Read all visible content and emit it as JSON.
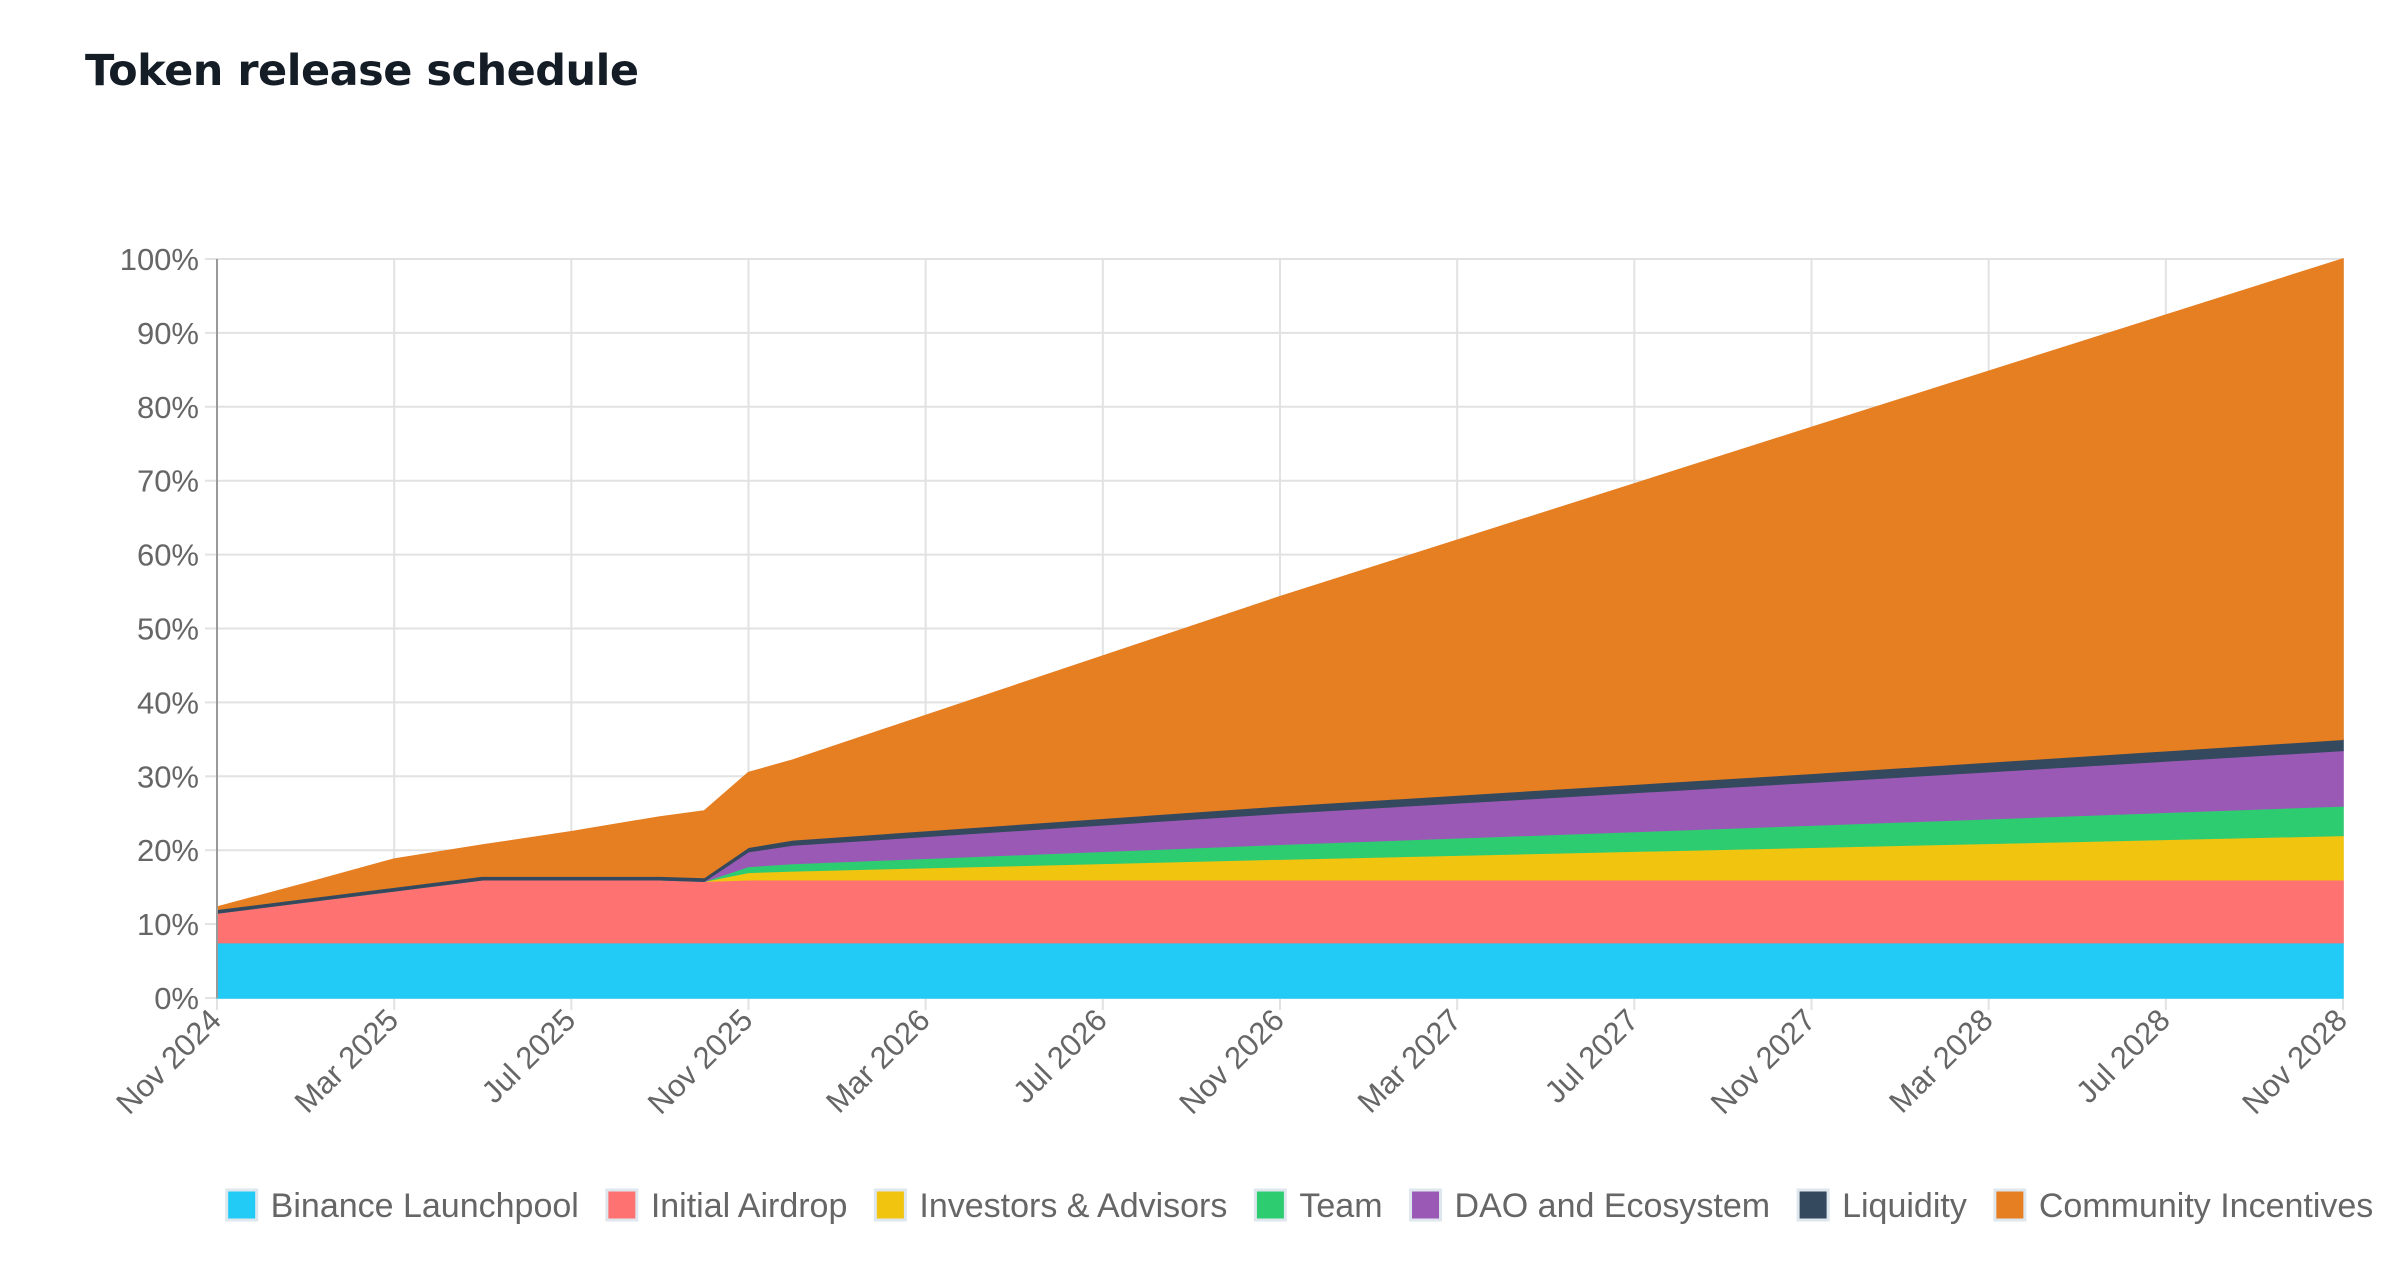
{
  "chart_data": {
    "type": "area",
    "stacked": true,
    "title": "Token release schedule",
    "xlabel": "",
    "ylabel": "",
    "ylim": [
      0,
      100
    ],
    "y_unit": "%",
    "grid": true,
    "legend_position": "bottom",
    "x": [
      "2024-11",
      "2025-01",
      "2025-03",
      "2025-05",
      "2025-07",
      "2025-09",
      "2025-10",
      "2025-11",
      "2025-12",
      "2026-11",
      "2027-11",
      "2028-11"
    ],
    "x_ticks": [
      "Nov 2024",
      "Mar 2025",
      "Jul 2025",
      "Nov 2025",
      "Mar 2026",
      "Jul 2026",
      "Nov 2026",
      "Mar 2027",
      "Jul 2027",
      "Nov 2027",
      "Mar 2028",
      "Jul 2028",
      "Nov 2028"
    ],
    "y_ticks": [
      "0%",
      "10%",
      "20%",
      "30%",
      "40%",
      "50%",
      "60%",
      "70%",
      "80%",
      "90%",
      "100%"
    ],
    "series": [
      {
        "name": "Binance Launchpool",
        "color": "#22cbf5",
        "values": [
          7.5,
          7.5,
          7.5,
          7.5,
          7.5,
          7.5,
          7.5,
          7.5,
          7.5,
          7.5,
          7.5,
          7.5
        ]
      },
      {
        "name": "Initial Airdrop",
        "color": "#fe7272",
        "values": [
          4,
          5.5,
          7,
          8.5,
          8.5,
          8.5,
          8.3,
          8.5,
          8.5,
          8.5,
          8.5,
          8.5
        ]
      },
      {
        "name": "Investors & Advisors",
        "color": "#f1c40f",
        "values": [
          0,
          0,
          0,
          0,
          0,
          0,
          0,
          1,
          1.2,
          2.8,
          4.4,
          6
        ]
      },
      {
        "name": "Team",
        "color": "#2ecc71",
        "values": [
          0,
          0,
          0,
          0,
          0,
          0,
          0,
          0.8,
          1,
          2,
          3,
          4
        ]
      },
      {
        "name": "DAO and Ecosystem",
        "color": "#9b59b6",
        "values": [
          0,
          0,
          0,
          0,
          0,
          0,
          0,
          2,
          2.5,
          4.2,
          5.8,
          7.5
        ]
      },
      {
        "name": "Liquidity",
        "color": "#34495e",
        "values": [
          0.5,
          0.5,
          0.5,
          0.5,
          0.5,
          0.5,
          0.5,
          0.6,
          0.7,
          1,
          1.2,
          1.5
        ]
      },
      {
        "name": "Community Incentives",
        "color": "#e67e22",
        "values": [
          0.3,
          2,
          3.8,
          4.2,
          6,
          8,
          9,
          10.1,
          10.8,
          28.3,
          46.8,
          65
        ]
      }
    ]
  }
}
